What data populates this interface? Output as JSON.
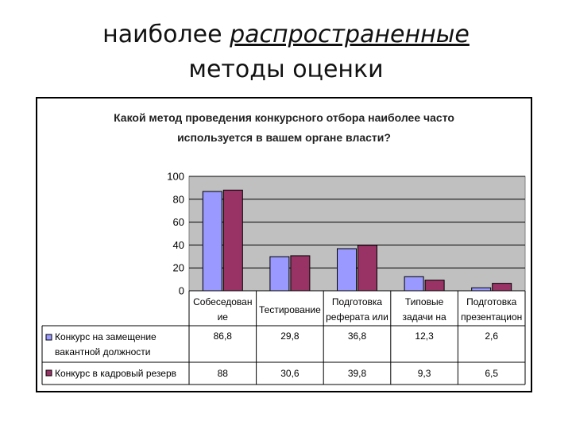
{
  "slide": {
    "title_line1_plain": "наиболее ",
    "title_line1_italic": "распространенные",
    "title_line2": "методы оценки"
  },
  "colors": {
    "series1": "#9999ff",
    "series2": "#993366",
    "plot_bg": "#c0c0c0",
    "grid": "#000000"
  },
  "chart_data": {
    "type": "bar",
    "title_line1": "Какой метод проведения конкурсного отбора наиболее часто",
    "title_line2": "используется в вашем органе власти?",
    "categories": [
      [
        "Собеседован",
        "ие"
      ],
      [
        "Тестирование"
      ],
      [
        "Подготовка",
        "реферата или"
      ],
      [
        "Типовые",
        "задачи на"
      ],
      [
        "Подготовка",
        "презентацион"
      ]
    ],
    "series": [
      {
        "name_lines": [
          "Конкурс на замещение",
          "вакантной должности"
        ],
        "values": [
          86.8,
          29.8,
          36.8,
          12.3,
          2.6
        ],
        "labels": [
          "86,8",
          "29,8",
          "36,8",
          "12,3",
          "2,6"
        ]
      },
      {
        "name_lines": [
          "Конкурс в кадровый резерв"
        ],
        "values": [
          88,
          30.6,
          39.8,
          9.3,
          6.5
        ],
        "labels": [
          "88",
          "30,6",
          "39,8",
          "9,3",
          "6,5"
        ]
      }
    ],
    "ylim": [
      0,
      100
    ],
    "yticks": [
      0,
      20,
      40,
      60,
      80,
      100
    ],
    "grid": true,
    "legend": "data-table"
  }
}
